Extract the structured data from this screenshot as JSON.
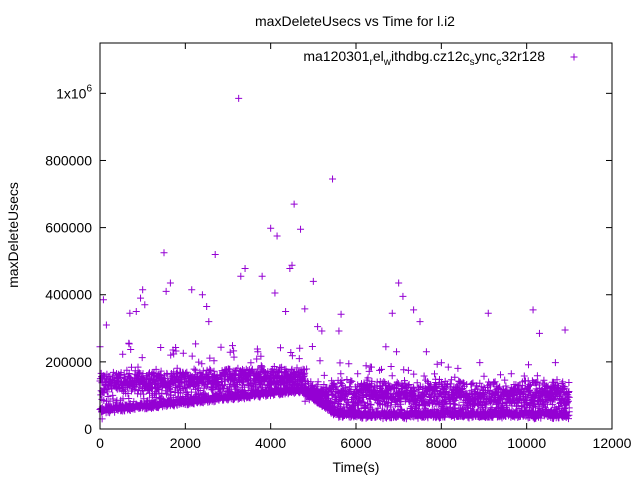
{
  "chart_data": {
    "type": "scatter",
    "title": "maxDeleteUsecs vs Time for l.i2",
    "xlabel": "Time(s)",
    "ylabel": "maxDeleteUsecs",
    "xlim": [
      0,
      12000
    ],
    "ylim": [
      0,
      1150000
    ],
    "x_ticks": [
      {
        "value": 0,
        "label": "0"
      },
      {
        "value": 2000,
        "label": "2000"
      },
      {
        "value": 4000,
        "label": "4000"
      },
      {
        "value": 6000,
        "label": "6000"
      },
      {
        "value": 8000,
        "label": "8000"
      },
      {
        "value": 10000,
        "label": "10000"
      },
      {
        "value": 12000,
        "label": "12000"
      }
    ],
    "y_ticks": [
      {
        "value": 0,
        "label": "0"
      },
      {
        "value": 200000,
        "label": "200000"
      },
      {
        "value": 400000,
        "label": "400000"
      },
      {
        "value": 600000,
        "label": "600000"
      },
      {
        "value": 800000,
        "label": "800000"
      }
    ],
    "y_top_tick": {
      "value": 1000000,
      "base": "1x10",
      "exponent": "6"
    },
    "legend": {
      "position": "top-right",
      "label_parts": [
        {
          "text": "ma120301",
          "sub": false
        },
        {
          "text": "r",
          "sub": true
        },
        {
          "text": "el",
          "sub": false
        },
        {
          "text": "w",
          "sub": true
        },
        {
          "text": "ithdbg.cz12c",
          "sub": false
        },
        {
          "text": "s",
          "sub": true
        },
        {
          "text": "ync",
          "sub": false
        },
        {
          "text": "c",
          "sub": true
        },
        {
          "text": "32r128",
          "sub": false
        }
      ]
    },
    "series": [
      {
        "name": "ma120301_rel_withdbg.cz12c_sync_c32r128",
        "color": "#9400d3",
        "marker": "plus",
        "outliers": [
          [
            0,
            245000
          ],
          [
            50,
            30000
          ],
          [
            80,
            385000
          ],
          [
            150,
            310000
          ],
          [
            700,
            345000
          ],
          [
            850,
            350000
          ],
          [
            950,
            390000
          ],
          [
            1000,
            415000
          ],
          [
            1050,
            370000
          ],
          [
            1500,
            525000
          ],
          [
            1550,
            410000
          ],
          [
            1650,
            435000
          ],
          [
            2150,
            415000
          ],
          [
            2400,
            400000
          ],
          [
            2500,
            365000
          ],
          [
            2550,
            320000
          ],
          [
            2700,
            520000
          ],
          [
            3250,
            985000
          ],
          [
            3300,
            455000
          ],
          [
            3400,
            478000
          ],
          [
            3800,
            455000
          ],
          [
            4000,
            598000
          ],
          [
            4100,
            405000
          ],
          [
            4150,
            575000
          ],
          [
            4350,
            350000
          ],
          [
            4450,
            478000
          ],
          [
            4500,
            488000
          ],
          [
            4550,
            670000
          ],
          [
            4700,
            595000
          ],
          [
            4800,
            358000
          ],
          [
            5000,
            440000
          ],
          [
            5100,
            305000
          ],
          [
            5200,
            292000
          ],
          [
            5450,
            745000
          ],
          [
            5600,
            292000
          ],
          [
            5650,
            342000
          ],
          [
            6700,
            245000
          ],
          [
            6950,
            230000
          ],
          [
            6850,
            345000
          ],
          [
            7000,
            435000
          ],
          [
            7100,
            395000
          ],
          [
            7350,
            355000
          ],
          [
            7500,
            320000
          ],
          [
            7650,
            230000
          ],
          [
            9100,
            345000
          ],
          [
            10150,
            355000
          ],
          [
            10300,
            285000
          ],
          [
            10900,
            295000
          ]
        ]
      }
    ]
  }
}
